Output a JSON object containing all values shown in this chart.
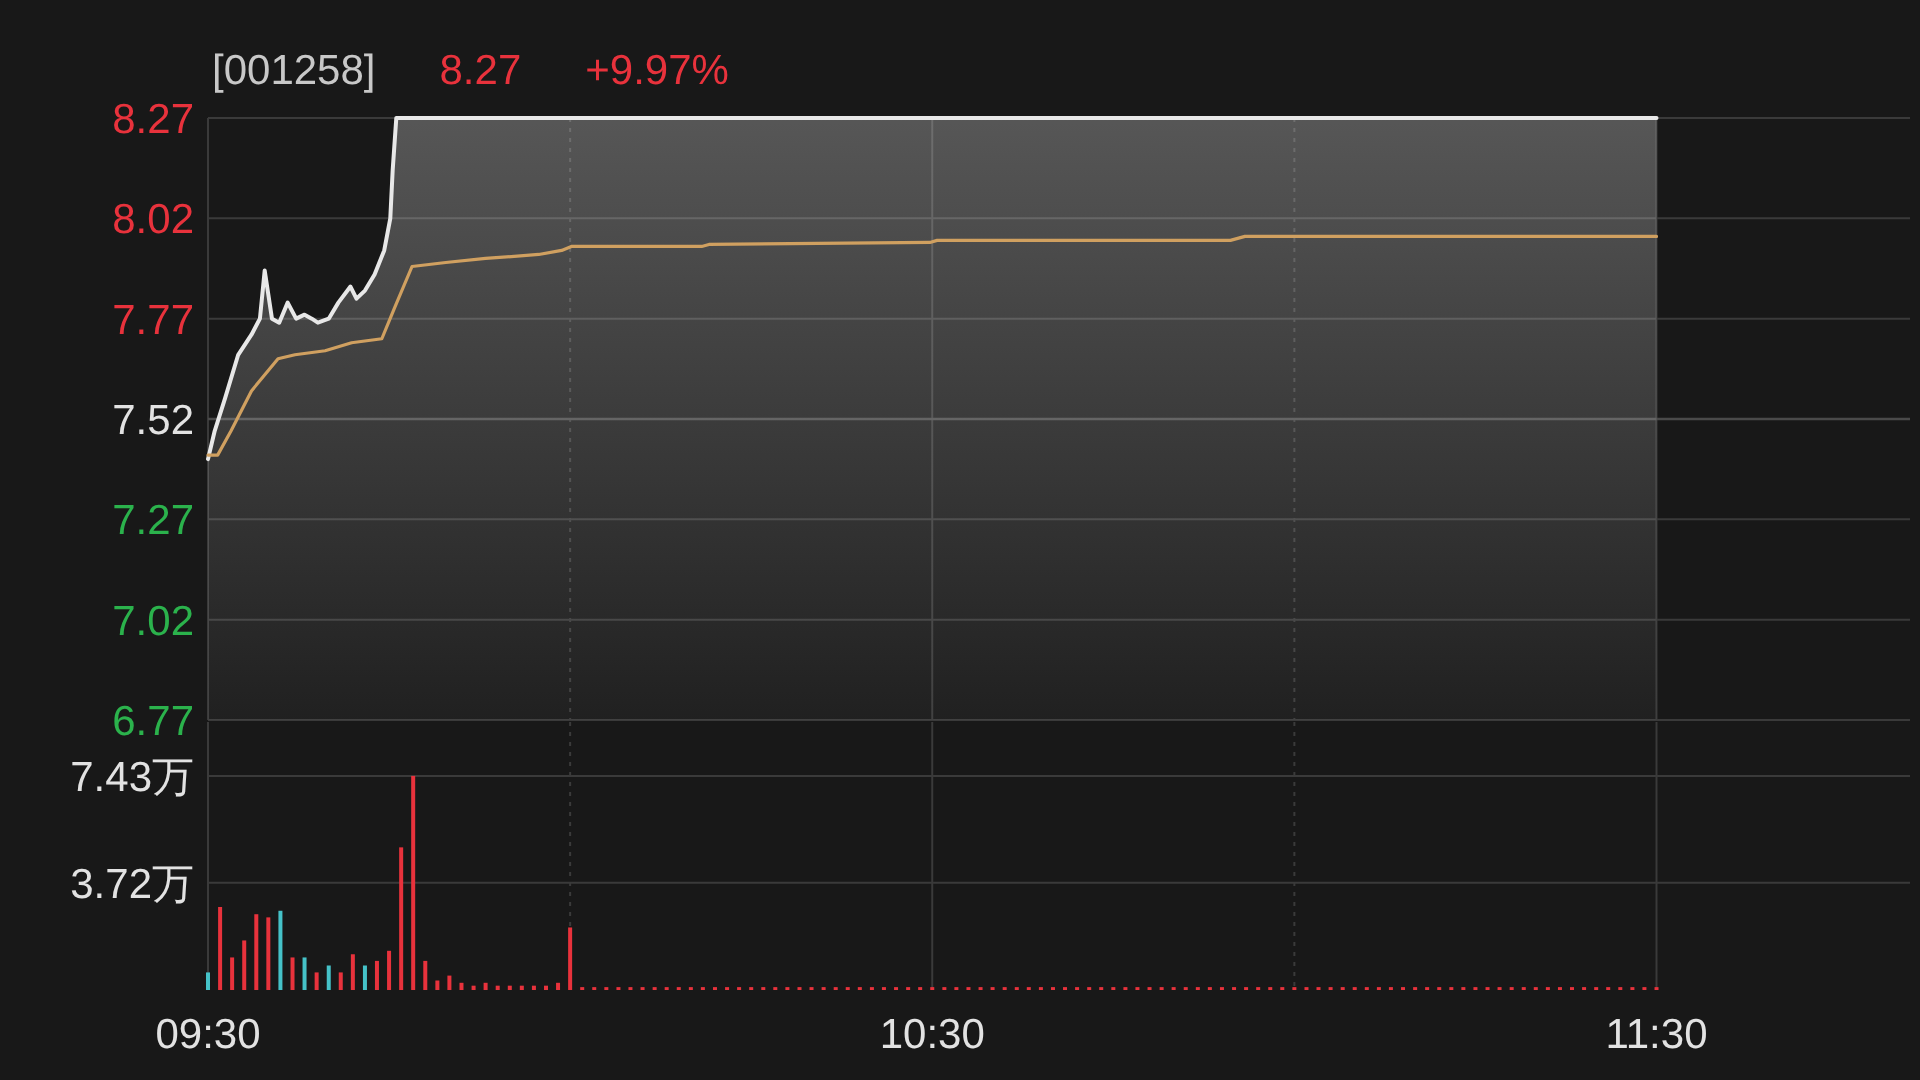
{
  "chart_data": [
    {
      "type": "line",
      "title": "[001258]",
      "annotations": [
        "8.27",
        "+9.97%"
      ],
      "xlim": [
        9.5,
        11.85
      ],
      "xticks": [
        9.5,
        {
          "value": 10,
          "label": null
        },
        10.5,
        {
          "value": 11,
          "label": null
        },
        11.5
      ],
      "ylim": [
        6.77,
        8.27
      ],
      "yticks": [
        6.77,
        7.02,
        7.27,
        7.52,
        7.77,
        8.02,
        8.27
      ],
      "grid": true,
      "tick_labels": "y",
      "ref_lines": [
        {
          "axis": "y",
          "value": 7.52,
          "color": "#4a4a4a"
        }
      ],
      "series": [
        {
          "type": "area",
          "color": "#e8e8e8",
          "x": [
            9.5,
            9.5092,
            9.5233,
            9.5417,
            9.56,
            9.5717,
            9.5783,
            9.5883,
            9.5983,
            9.61,
            9.6217,
            9.6333,
            9.6433,
            9.6517,
            9.6667,
            9.68,
            9.6967,
            9.705,
            9.7167,
            9.73,
            9.7433,
            9.7517,
            9.755,
            9.76,
            11.5
          ],
          "values": [
            7.42,
            7.49,
            7.57,
            7.68,
            7.73,
            7.77,
            7.89,
            7.77,
            7.76,
            7.81,
            7.77,
            7.78,
            7.77,
            7.76,
            7.77,
            7.81,
            7.85,
            7.82,
            7.84,
            7.88,
            7.94,
            8.02,
            8.14,
            8.27,
            8.27
          ]
        },
        {
          "color": "#d0a060",
          "x": [
            9.5,
            9.5133,
            9.5317,
            9.56,
            9.5967,
            9.62,
            9.6617,
            9.6983,
            9.74,
            9.7583,
            9.7817,
            9.8283,
            9.8833,
            9.9567,
            9.9883,
            10.0017,
            10.1817,
            10.1917,
            10.4967,
            10.5067,
            10.9117,
            10.9317,
            11.5
          ],
          "values": [
            7.43,
            7.43,
            7.49,
            7.59,
            7.67,
            7.68,
            7.69,
            7.71,
            7.72,
            7.8,
            7.9,
            7.91,
            7.92,
            7.93,
            7.94,
            7.95,
            7.95,
            7.955,
            7.96,
            7.965,
            7.965,
            7.975,
            7.975
          ]
        }
      ]
    },
    {
      "type": "bar",
      "xlim": [
        9.5,
        11.85
      ],
      "xticks": [
        {
          "value": 9.5,
          "label": "09:30"
        },
        {
          "value": 10,
          "label": null
        },
        {
          "value": 10.5,
          "label": "10:30"
        },
        {
          "value": 11,
          "label": null
        },
        {
          "value": 11.5,
          "label": "11:30"
        }
      ],
      "ylim": [
        0,
        9.3
      ],
      "yticks": [
        {
          "value": 3.72,
          "label": "3.72万"
        },
        {
          "value": 7.43,
          "label": "7.43万"
        }
      ],
      "grid": true,
      "x": [
        9.5,
        9.5167,
        9.5333,
        9.55,
        9.5667,
        9.5833,
        9.6,
        9.6167,
        9.6333,
        9.65,
        9.6667,
        9.6833,
        9.7,
        9.7167,
        9.7333,
        9.75,
        9.7667,
        9.7833,
        9.8,
        9.8167,
        9.8333,
        9.85,
        9.8667,
        9.8833,
        9.9,
        9.9167,
        9.9333,
        9.95,
        9.9667,
        9.9833,
        10,
        10.0167,
        10.0333,
        10.05,
        10.0667,
        10.0833,
        10.1,
        10.1167,
        10.1333,
        10.15,
        10.1667,
        10.1833,
        10.2,
        10.2167,
        10.2333,
        10.25,
        10.2667,
        10.2833,
        10.3,
        10.3167,
        10.3333,
        10.35,
        10.3667,
        10.3833,
        10.4,
        10.4167,
        10.4333,
        10.45,
        10.4667,
        10.4833,
        10.5,
        10.5167,
        10.5333,
        10.55,
        10.5667,
        10.5833,
        10.6,
        10.6167,
        10.6333,
        10.65,
        10.6667,
        10.6833,
        10.7,
        10.7167,
        10.7333,
        10.75,
        10.7667,
        10.7833,
        10.8,
        10.8167,
        10.8333,
        10.85,
        10.8667,
        10.8833,
        10.9,
        10.9167,
        10.9333,
        10.95,
        10.9667,
        10.9833,
        11,
        11.0167,
        11.0333,
        11.05,
        11.0667,
        11.0833,
        11.1,
        11.1167,
        11.1333,
        11.15,
        11.1667,
        11.1833,
        11.2,
        11.2167,
        11.2333,
        11.25,
        11.2667,
        11.2833,
        11.3,
        11.3167,
        11.3333,
        11.35,
        11.3667,
        11.3833,
        11.4,
        11.4167,
        11.4333,
        11.45,
        11.4667,
        11.4833,
        11.5
      ],
      "values": [
        0.61,
        2.88,
        1.13,
        1.72,
        2.63,
        2.52,
        2.75,
        1.13,
        1.13,
        0.61,
        0.85,
        0.61,
        1.24,
        0.85,
        1.01,
        1.36,
        4.95,
        7.43,
        1.01,
        0.33,
        0.5,
        0.25,
        0.15,
        0.25,
        0.15,
        0.15,
        0.15,
        0.15,
        0.15,
        0.25,
        2.17,
        0.1,
        0.1,
        0.1,
        0.1,
        0.1,
        0.1,
        0.1,
        0.1,
        0.1,
        0.1,
        0.1,
        0.1,
        0.1,
        0.1,
        0.1,
        0.1,
        0.1,
        0.1,
        0.1,
        0.1,
        0.1,
        0.1,
        0.1,
        0.1,
        0.1,
        0.1,
        0.1,
        0.1,
        0.1,
        0.1,
        0.1,
        0.1,
        0.1,
        0.1,
        0.1,
        0.1,
        0.1,
        0.1,
        0.1,
        0.1,
        0.1,
        0.1,
        0.1,
        0.1,
        0.1,
        0.1,
        0.1,
        0.1,
        0.1,
        0.1,
        0.1,
        0.1,
        0.1,
        0.1,
        0.1,
        0.1,
        0.1,
        0.1,
        0.1,
        0.1,
        0.1,
        0.1,
        0.1,
        0.1,
        0.1,
        0.1,
        0.1,
        0.1,
        0.1,
        0.1,
        0.1,
        0.1,
        0.1,
        0.1,
        0.1,
        0.1,
        0.1,
        0.1,
        0.1,
        0.1,
        0.1,
        0.1,
        0.1,
        0.1,
        0.1,
        0.1,
        0.1,
        0.1,
        0.1,
        0.1
      ],
      "colors": [
        "#45c2c8",
        "#e8323c",
        "#e8323c",
        "#e8323c",
        "#e8323c",
        "#e8323c",
        "#45c2c8",
        "#e8323c",
        "#45c2c8",
        "#e8323c",
        "#45c2c8",
        "#e8323c",
        "#e8323c",
        "#45c2c8",
        "#e8323c",
        "#e8323c",
        "#e8323c",
        "#e8323c",
        "#e8323c",
        "#e8323c",
        "#e8323c",
        "#e8323c",
        "#e8323c",
        "#e8323c",
        "#e8323c",
        "#e8323c",
        "#e8323c",
        "#e8323c",
        "#e8323c",
        "#e8323c",
        "#e8323c",
        "#e8323c",
        "#e8323c",
        "#e8323c",
        "#e8323c",
        "#e8323c",
        "#e8323c",
        "#e8323c",
        "#e8323c",
        "#e8323c",
        "#e8323c",
        "#e8323c",
        "#e8323c",
        "#e8323c",
        "#e8323c",
        "#e8323c",
        "#e8323c",
        "#e8323c",
        "#e8323c",
        "#e8323c",
        "#e8323c",
        "#e8323c",
        "#e8323c",
        "#e8323c",
        "#e8323c",
        "#e8323c",
        "#e8323c",
        "#e8323c",
        "#e8323c",
        "#e8323c",
        "#e8323c",
        "#e8323c",
        "#e8323c",
        "#e8323c",
        "#e8323c",
        "#e8323c",
        "#e8323c",
        "#e8323c",
        "#e8323c",
        "#e8323c",
        "#e8323c",
        "#e8323c",
        "#e8323c",
        "#e8323c",
        "#e8323c",
        "#e8323c",
        "#e8323c",
        "#e8323c",
        "#e8323c",
        "#e8323c",
        "#e8323c",
        "#e8323c",
        "#e8323c",
        "#e8323c",
        "#e8323c",
        "#e8323c",
        "#e8323c",
        "#e8323c",
        "#e8323c",
        "#e8323c",
        "#e8323c",
        "#e8323c",
        "#e8323c",
        "#e8323c",
        "#e8323c",
        "#e8323c",
        "#e8323c",
        "#e8323c",
        "#e8323c",
        "#e8323c",
        "#e8323c",
        "#e8323c",
        "#e8323c",
        "#e8323c",
        "#e8323c",
        "#e8323c",
        "#e8323c",
        "#e8323c",
        "#e8323c",
        "#e8323c",
        "#e8323c",
        "#e8323c",
        "#e8323c",
        "#e8323c",
        "#e8323c",
        "#e8323c",
        "#e8323c",
        "#e8323c",
        "#e8323c",
        "#e8323c",
        "#e8323c"
      ]
    }
  ]
}
